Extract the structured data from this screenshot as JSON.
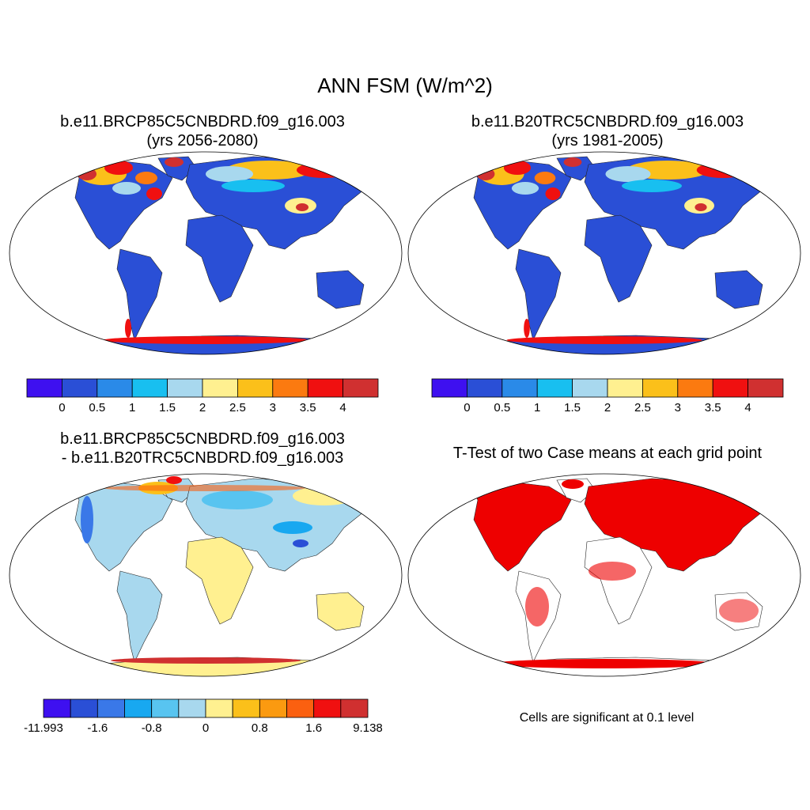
{
  "figure_title": "ANN FSM (W/m^2)",
  "panels": [
    {
      "id": "future",
      "title_line1": "b.e11.BRCP85C5CNBDRD.f09_g16.003",
      "title_line2": "(yrs 2056-2080)"
    },
    {
      "id": "historical",
      "title_line1": "b.e11.B20TRC5CNBDRD.f09_g16.003",
      "title_line2": "(yrs 1981-2005)"
    },
    {
      "id": "difference",
      "title_line1": "b.e11.BRCP85C5CNBDRD.f09_g16.003",
      "title_line2": "- b.e11.B20TRC5CNBDRD.f09_g16.003"
    },
    {
      "id": "ttest",
      "title_line1": "T-Test of two Case means at each grid point",
      "title_line2": "",
      "note": "Cells are significant at 0.1 level"
    }
  ],
  "colorbars": {
    "absolute": {
      "colors": [
        "#3e10f0",
        "#2a4fd6",
        "#2a8ae8",
        "#18bff0",
        "#a8d8ee",
        "#fff090",
        "#fbc01a",
        "#fb7a10",
        "#f01010",
        "#d03030"
      ],
      "labels": [
        "0",
        "0.5",
        "1",
        "1.5",
        "2",
        "2.5",
        "3",
        "3.5",
        "4"
      ]
    },
    "difference": {
      "colors": [
        "#3e10f0",
        "#2a4fd6",
        "#3a78e8",
        "#18a8f0",
        "#58c4f0",
        "#a8d8ee",
        "#fff090",
        "#fbc01a",
        "#fb9a10",
        "#fb6010",
        "#f01010",
        "#d03030"
      ],
      "labels": [
        "-11.993",
        "-1.6",
        "-0.8",
        "0",
        "0.8",
        "1.6",
        "9.138"
      ]
    }
  },
  "map_colors": {
    "land_low": "#2a4fd6",
    "ttest_significant": "#ee0000",
    "diff_land": "#a8d8ee"
  }
}
